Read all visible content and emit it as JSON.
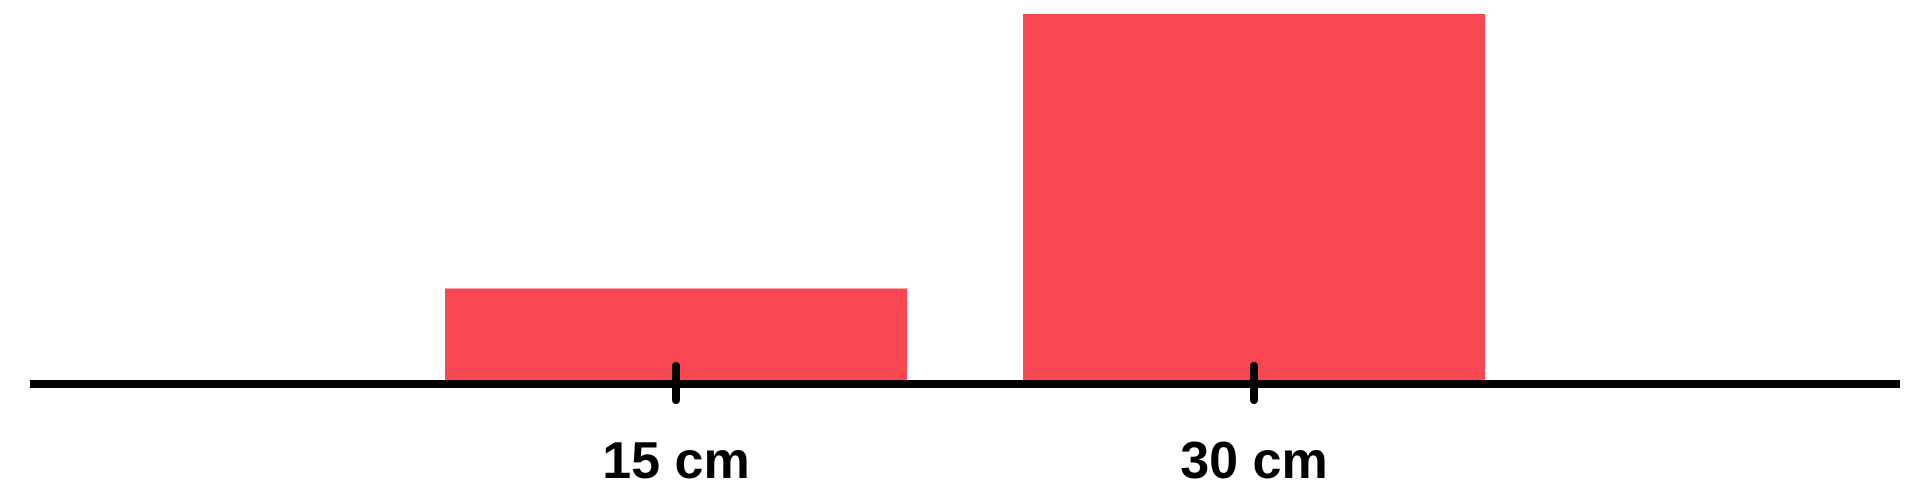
{
  "chart_data": {
    "type": "bar",
    "categories": [
      "15 cm",
      "30 cm"
    ],
    "values": [
      1,
      4
    ],
    "title": "",
    "xlabel": "",
    "ylabel": "",
    "grid": false,
    "colors": {
      "bar": "#f94751",
      "axis": "#000000"
    }
  }
}
